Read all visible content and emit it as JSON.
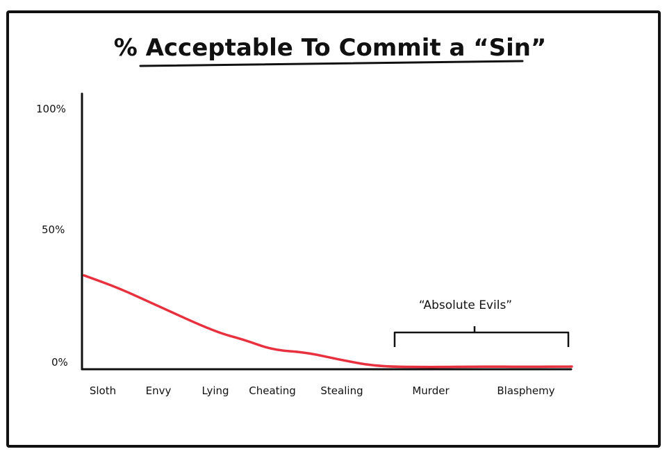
{
  "chart_data": {
    "type": "line",
    "title": "% Acceptable To Commit a “Sin”",
    "xlabel": "",
    "ylabel": "",
    "ylim": [
      0,
      100
    ],
    "yticks": [
      "100%",
      "50%",
      "0%"
    ],
    "categories": [
      "Sloth",
      "Envy",
      "Lying",
      "Cheating",
      "Stealing",
      "Murder",
      "Blasphemy"
    ],
    "series": [
      {
        "color": "#e8313f",
        "x": [
          0.0,
          0.3,
          1.0,
          2.0,
          2.5,
          3.0,
          3.5,
          4.0,
          4.4,
          5.0,
          5.5,
          6.0,
          6.5
        ],
        "values": [
          36,
          31,
          24,
          14,
          11,
          7,
          6,
          3,
          0.5,
          0.3,
          0.5,
          0.4,
          0.5
        ]
      }
    ],
    "annotation": {
      "label": "“Absolute Evils”",
      "from_category": "Murder",
      "to_category": "Blasphemy"
    },
    "grid": false,
    "legend": "none"
  }
}
